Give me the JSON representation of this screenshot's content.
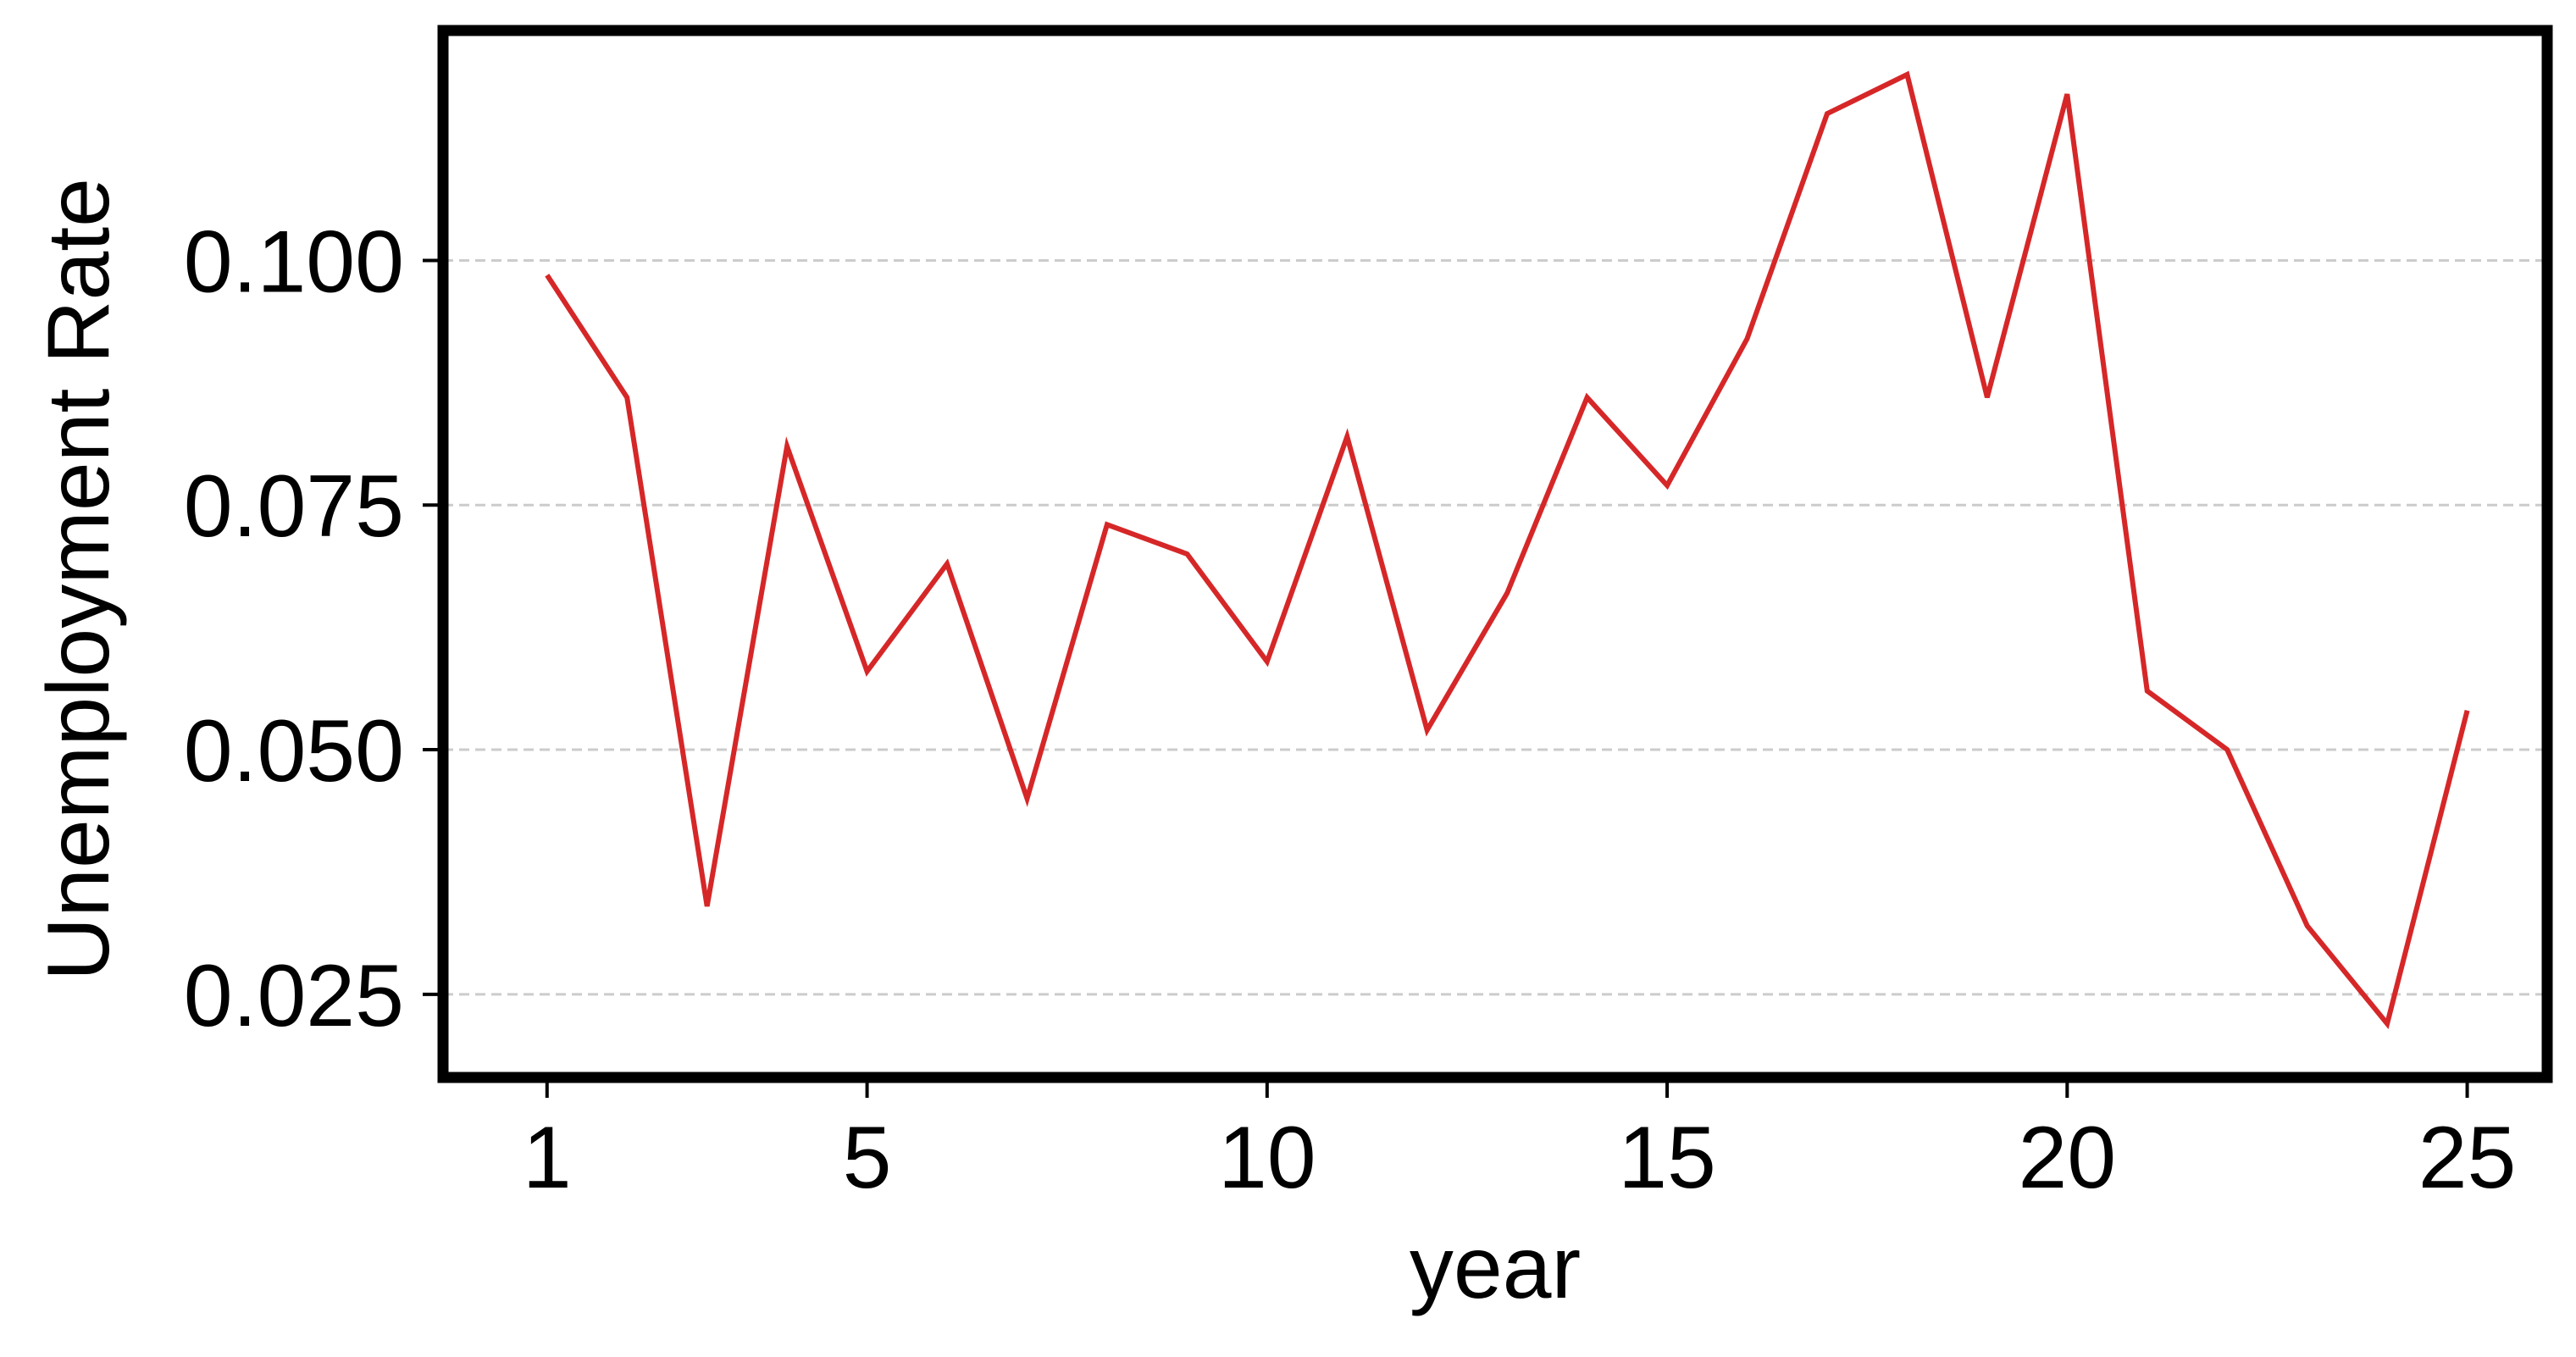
{
  "chart_data": {
    "type": "line",
    "title": "",
    "xlabel": "year",
    "ylabel": "Unemployment Rate",
    "x": [
      1,
      2,
      3,
      4,
      5,
      6,
      7,
      8,
      9,
      10,
      11,
      12,
      13,
      14,
      15,
      16,
      17,
      18,
      19,
      20,
      21,
      22,
      23,
      24,
      25
    ],
    "series": [
      {
        "color": "#d62728",
        "values": [
          0.0985,
          0.086,
          0.034,
          0.081,
          0.058,
          0.069,
          0.045,
          0.073,
          0.07,
          0.059,
          0.082,
          0.052,
          0.066,
          0.086,
          0.077,
          0.092,
          0.115,
          0.119,
          0.086,
          0.117,
          0.056,
          0.05,
          0.032,
          0.022,
          0.054
        ]
      }
    ],
    "xlim": [
      -0.3,
      26.0
    ],
    "ylim": [
      0.0165,
      0.1235
    ],
    "xticks": [
      1,
      5,
      10,
      15,
      20,
      25
    ],
    "xtick_labels": [
      "1",
      "5",
      "10",
      "15",
      "20",
      "25"
    ],
    "yticks": [
      0.025,
      0.05,
      0.075,
      0.1
    ],
    "ytick_labels": [
      "0.025",
      "0.050",
      "0.075",
      "0.100"
    ],
    "grid": "horizontal-dashed",
    "grid_color": "#cccccc",
    "frame_color": "#000000",
    "legend": "none"
  }
}
